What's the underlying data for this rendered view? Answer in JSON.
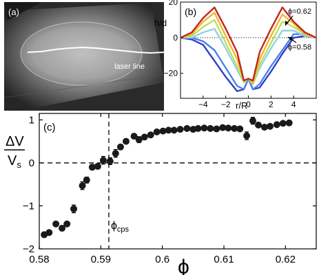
{
  "panel_a": {
    "label": "(a)",
    "annotation": "laser line"
  },
  "chart_data": [
    {
      "panel": "(b)",
      "type": "line",
      "xlabel": "r/R",
      "ylabel": "h/d",
      "xlim": [
        -6,
        6
      ],
      "ylim": [
        -34,
        20
      ],
      "xticks": [
        -4,
        -2,
        0,
        2,
        4
      ],
      "yticks": [
        -20,
        0,
        20
      ],
      "reference_line": {
        "y": 0,
        "style": "dotted"
      },
      "annotations": [
        "ϕ=0.62",
        "ϕ=0.58"
      ],
      "series": [
        {
          "color": "#2b3fc8",
          "x": [
            -6,
            -5,
            -4,
            -3,
            -2,
            -1,
            -0.4,
            0,
            0.4,
            1,
            2,
            3,
            4,
            5,
            6
          ],
          "y": [
            0,
            -1,
            -4,
            -13,
            -22,
            -30,
            -29,
            -23,
            -29,
            -28,
            -19,
            -9,
            0,
            1,
            0
          ]
        },
        {
          "color": "#4f7fe6",
          "x": [
            -6,
            -5,
            -4,
            -3,
            -2,
            -1,
            -0.4,
            0,
            0.4,
            1,
            2,
            3,
            4,
            5,
            6
          ],
          "y": [
            0,
            0,
            -2,
            -7,
            -17,
            -27,
            -29,
            -23,
            -29,
            -26,
            -16,
            -7,
            2,
            2,
            0
          ]
        },
        {
          "color": "#8fd1e8",
          "x": [
            -6,
            -5,
            -4,
            -3,
            -2,
            -1,
            -0.4,
            0,
            0.4,
            1,
            2,
            3,
            4,
            5,
            6
          ],
          "y": [
            0,
            0,
            3,
            5,
            -6,
            -18,
            -25,
            -23,
            -26,
            -17,
            -6,
            4,
            4,
            1,
            0
          ]
        },
        {
          "color": "#bde05a",
          "x": [
            -6,
            -5,
            -4,
            -3,
            -2,
            -1,
            -0.4,
            0,
            0.4,
            1,
            2,
            3,
            4,
            5,
            6
          ],
          "y": [
            0,
            1,
            6,
            10,
            -3,
            -16,
            -25,
            -23,
            -26,
            -15,
            -3,
            9,
            6,
            2,
            0
          ]
        },
        {
          "color": "#f1b534",
          "x": [
            -6,
            -5,
            -4,
            -3,
            -2,
            -1,
            -0.4,
            0,
            0.4,
            1,
            2,
            3,
            4,
            5,
            6
          ],
          "y": [
            0,
            2,
            9,
            14,
            1,
            -12,
            -24,
            -23,
            -25,
            -12,
            1,
            13,
            8,
            2,
            0
          ]
        },
        {
          "color": "#c0261c",
          "x": [
            -6,
            -5,
            -4,
            -3,
            -2,
            -1,
            -0.4,
            0,
            0.4,
            1,
            2,
            3,
            4,
            5,
            6
          ],
          "y": [
            0,
            3,
            11,
            17,
            5,
            -8,
            -24,
            -23,
            -24,
            -8,
            5,
            17,
            9,
            3,
            0
          ]
        }
      ]
    },
    {
      "panel": "(c)",
      "type": "scatter",
      "xlabel": "ϕ",
      "ylabel": "ΔV / V_s",
      "ylabel_top": "ΔV",
      "ylabel_bottom": "V",
      "ylabel_bottom_sub": "s",
      "xlim": [
        0.58,
        0.625
      ],
      "ylim": [
        -2,
        1.15
      ],
      "xticks": [
        0.58,
        0.59,
        0.6,
        0.61,
        0.62
      ],
      "xtick_labels": [
        "0.58",
        "0.59",
        "0.6",
        "0.61",
        "0.62"
      ],
      "yticks": [
        1,
        0,
        -1,
        -2
      ],
      "reference_lines": [
        {
          "axis": "y",
          "value": 0,
          "style": "dashed"
        },
        {
          "axis": "x",
          "value": 0.5913,
          "style": "dashed"
        }
      ],
      "vline_label_main": "ϕ",
      "vline_label_sub": "cps",
      "points": [
        {
          "x": 0.5808,
          "y": -1.67,
          "err": 0.06
        },
        {
          "x": 0.5816,
          "y": -1.62,
          "err": 0.05
        },
        {
          "x": 0.5827,
          "y": -1.42,
          "err": 0.05
        },
        {
          "x": 0.5837,
          "y": -1.52,
          "err": 0.06
        },
        {
          "x": 0.5845,
          "y": -1.42,
          "err": 0.05
        },
        {
          "x": 0.5856,
          "y": -1.07,
          "err": 0.09
        },
        {
          "x": 0.587,
          "y": -0.53,
          "err": 0.09
        },
        {
          "x": 0.5877,
          "y": -0.4,
          "err": 0.07
        },
        {
          "x": 0.5886,
          "y": -0.1,
          "err": 0.06
        },
        {
          "x": 0.5895,
          "y": -0.08,
          "err": 0.06
        },
        {
          "x": 0.5904,
          "y": 0.06,
          "err": 0.09
        },
        {
          "x": 0.5915,
          "y": 0.04,
          "err": 0.08
        },
        {
          "x": 0.5924,
          "y": 0.22,
          "err": 0.09
        },
        {
          "x": 0.5932,
          "y": 0.37,
          "err": 0.04
        },
        {
          "x": 0.5941,
          "y": 0.5,
          "err": 0.04
        },
        {
          "x": 0.5954,
          "y": 0.62,
          "err": 0.05
        },
        {
          "x": 0.5962,
          "y": 0.54,
          "err": 0.07
        },
        {
          "x": 0.5971,
          "y": 0.6,
          "err": 0.05
        },
        {
          "x": 0.5981,
          "y": 0.65,
          "err": 0.05
        },
        {
          "x": 0.5991,
          "y": 0.72,
          "err": 0.04
        },
        {
          "x": 0.6001,
          "y": 0.74,
          "err": 0.04
        },
        {
          "x": 0.601,
          "y": 0.76,
          "err": 0.04
        },
        {
          "x": 0.6019,
          "y": 0.76,
          "err": 0.04
        },
        {
          "x": 0.6029,
          "y": 0.78,
          "err": 0.04
        },
        {
          "x": 0.604,
          "y": 0.8,
          "err": 0.04
        },
        {
          "x": 0.605,
          "y": 0.78,
          "err": 0.04
        },
        {
          "x": 0.6058,
          "y": 0.8,
          "err": 0.04
        },
        {
          "x": 0.6068,
          "y": 0.81,
          "err": 0.04
        },
        {
          "x": 0.6078,
          "y": 0.8,
          "err": 0.04
        },
        {
          "x": 0.6088,
          "y": 0.79,
          "err": 0.04
        },
        {
          "x": 0.6098,
          "y": 0.82,
          "err": 0.04
        },
        {
          "x": 0.6107,
          "y": 0.81,
          "err": 0.04
        },
        {
          "x": 0.6117,
          "y": 0.8,
          "err": 0.05
        },
        {
          "x": 0.6126,
          "y": 0.79,
          "err": 0.05
        },
        {
          "x": 0.6137,
          "y": 0.63,
          "err": 0.09
        },
        {
          "x": 0.6147,
          "y": 0.98,
          "err": 0.08
        },
        {
          "x": 0.6156,
          "y": 0.88,
          "err": 0.05
        },
        {
          "x": 0.6166,
          "y": 0.83,
          "err": 0.04
        },
        {
          "x": 0.6175,
          "y": 0.85,
          "err": 0.04
        },
        {
          "x": 0.6186,
          "y": 0.89,
          "err": 0.04
        },
        {
          "x": 0.6196,
          "y": 0.92,
          "err": 0.04
        },
        {
          "x": 0.6206,
          "y": 0.93,
          "err": 0.04
        }
      ]
    }
  ]
}
